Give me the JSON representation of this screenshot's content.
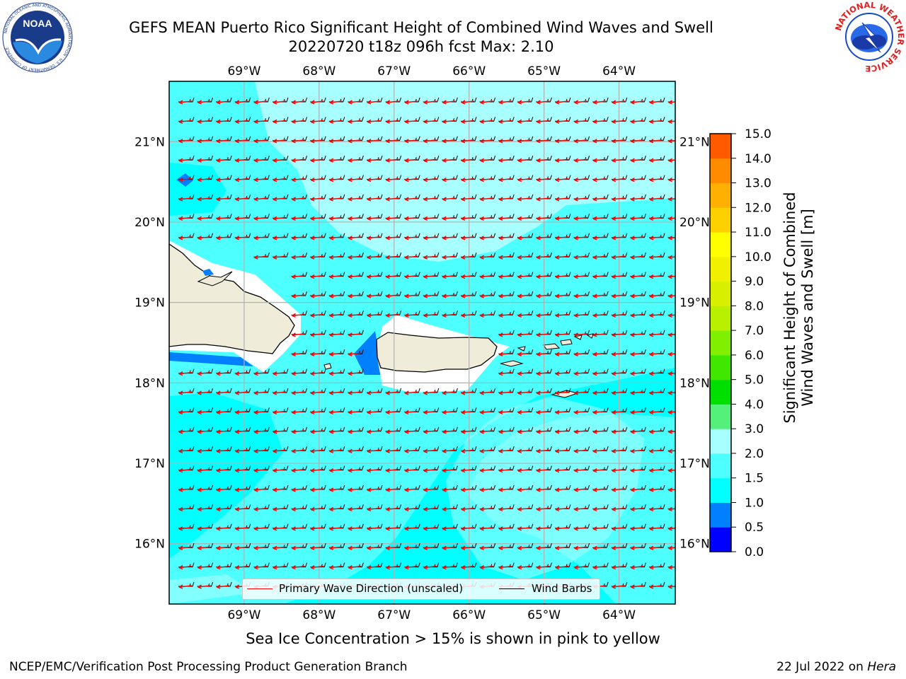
{
  "title": {
    "line1": "GEFS MEAN Puerto Rico Significant Height of Combined Wind Waves and Swell",
    "line2": "20220720 t18z 096h fcst   Max: 2.10"
  },
  "logos": {
    "noara": "NOAA",
    "nws": "NATIONAL WEATHER SERVICE",
    "noaa_ring": "NATIONAL OCEANIC AND ATMOSPHERIC ADMINISTRATION · U.S. DEPARTMENT OF COMMERCE"
  },
  "map": {
    "lon_ticks": [
      "69°W",
      "68°W",
      "67°W",
      "66°W",
      "65°W",
      "64°W"
    ],
    "lat_ticks": [
      "21°N",
      "20°N",
      "19°N",
      "18°N",
      "17°N",
      "16°N"
    ],
    "lon_values": [
      -69,
      -68,
      -67,
      -66,
      -65,
      -64
    ],
    "lat_values": [
      21,
      20,
      19,
      18,
      17,
      16
    ],
    "extent": {
      "lon": [
        -70,
        -63.25
      ],
      "lat": [
        15.25,
        21.75
      ]
    },
    "colors": {
      "ocean_1_0_1_5": "#00ffff",
      "ocean_1_5_2_0": "#4dffff",
      "ocean_2_0_3_0": "#a8ffff",
      "ocean_0_5_1_0": "#0080ff",
      "land": "#efedda",
      "coast": "#000000",
      "wave_arrow": "#ff0000",
      "wind_barb": "#000000",
      "grid": "#b0b0b0"
    }
  },
  "legend": {
    "wave": "Primary Wave Direction (unscaled)",
    "wind": "Wind Barbs"
  },
  "colorbar": {
    "label_line1": "Significant Height of Combined",
    "label_line2": "Wind Waves and Swell [m]",
    "ticks": [
      "15.0",
      "14.0",
      "13.0",
      "12.0",
      "11.0",
      "10.0",
      "9.0",
      "8.0",
      "7.0",
      "6.0",
      "5.0",
      "4.0",
      "3.0",
      "2.0",
      "1.5",
      "1.0",
      "0.5",
      "0.0"
    ],
    "colors": [
      "#0000ff",
      "#0080ff",
      "#00ffff",
      "#4dffff",
      "#a8ffff",
      "#55f07a",
      "#00e000",
      "#40e800",
      "#80f000",
      "#b8f000",
      "#d8f000",
      "#f0f000",
      "#ffff00",
      "#ffd000",
      "#ffb000",
      "#ff8c00",
      "#ff5a00",
      "#ff2a00",
      "#ff0000"
    ]
  },
  "note": "Sea Ice Concentration > 15% is shown in pink to yellow",
  "footer": {
    "left": "NCEP/EMC/Verification Post Processing Product Generation Branch",
    "right_prefix": "22 Jul 2022 on ",
    "right_host": "Hera"
  }
}
